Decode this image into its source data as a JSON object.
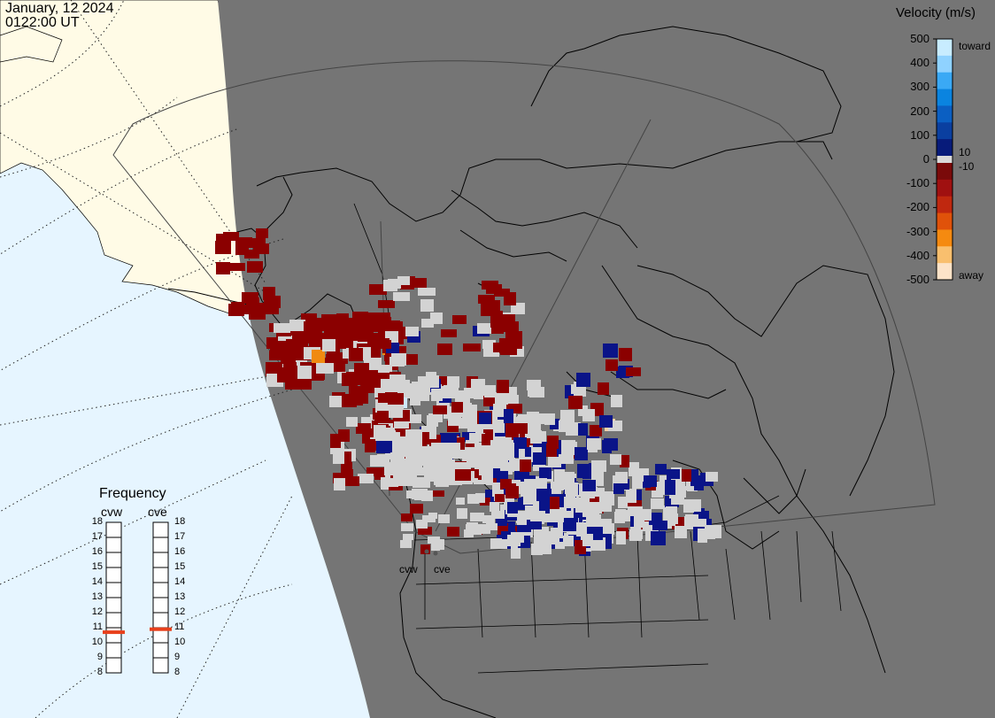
{
  "header": {
    "date": "January, 12 2024",
    "time": "0122:00 UT"
  },
  "colorbar": {
    "title": "Velocity (m/s)",
    "ticks": [
      "500",
      "400",
      "300",
      "200",
      "100",
      "0",
      "-100",
      "-200",
      "-300",
      "-400",
      "-500"
    ],
    "toward_label": "toward",
    "away_label": "away",
    "plus_threshold": "10",
    "minus_threshold": "-10",
    "colors_toward": [
      "#c8ecff",
      "#8fd2ff",
      "#3aa9f5",
      "#0a84e0",
      "#0b5fc2",
      "#0a3fa0",
      "#071b7a"
    ],
    "colors_away": [
      "#7a0a0a",
      "#a01010",
      "#c0280f",
      "#e0520a",
      "#f58a10",
      "#f9bf6e",
      "#fde3c8"
    ],
    "zero_color": "#d9d9d9"
  },
  "frequency": {
    "title": "Frequency",
    "radars": [
      {
        "name": "cvw",
        "selected_mhz": 10.7
      },
      {
        "name": "cve",
        "selected_mhz": 10.9
      }
    ],
    "ticks": [
      "18",
      "17",
      "16",
      "15",
      "14",
      "13",
      "12",
      "11",
      "10",
      "9",
      "8"
    ]
  },
  "map": {
    "ocean_color": "#e6f5ff",
    "night_color": "#757575",
    "land_day_color": "#fffbe6",
    "scatter_colors": {
      "ground": "#d3d3d3",
      "away": "#8b0000",
      "toward": "#0a1488",
      "toward_light": "#cfe8ff",
      "away_light": "#f8d2a8",
      "away_orange": "#f08a10"
    },
    "site_labels": [
      "cvw",
      "cve"
    ]
  }
}
